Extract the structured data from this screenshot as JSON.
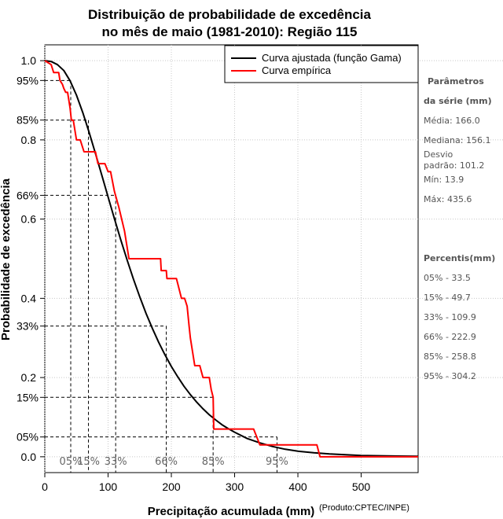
{
  "chart_data": {
    "type": "line",
    "title_line1": "Distribuição de probabilidade de excedência",
    "title_line2": "no mês de maio (1981-2010): Região 115",
    "xlabel": "Precipitação acumulada (mm)",
    "ylabel": "Probabilidade de excedência",
    "credit": "(Produto:CPTEC/INPE)",
    "xlim": [
      0,
      590
    ],
    "ylim": [
      -0.04,
      1.04
    ],
    "x_ticks": [
      0,
      100,
      200,
      300,
      400,
      500
    ],
    "x_tick_labels": [
      "0",
      "100",
      "200",
      "300",
      "400",
      "500"
    ],
    "y_ticks": [
      0.0,
      0.2,
      0.4,
      0.6,
      0.8,
      1.0
    ],
    "y_tick_labels": [
      "0.0",
      "0.2",
      "0.4",
      "0.6",
      "0.8",
      "1.0"
    ],
    "percentile_y_ticks": [
      0.95,
      0.85,
      0.66,
      0.33,
      0.15,
      0.05
    ],
    "percentile_y_labels": [
      "95%",
      "85%",
      "66%",
      "33%",
      "15%",
      "05%"
    ],
    "percentile_markers": [
      {
        "label": "05%",
        "x": 33.5,
        "y": 0.95
      },
      {
        "label": "15%",
        "x": 49.7,
        "y": 0.85
      },
      {
        "label": "33%",
        "x": 109.9,
        "y": 0.66
      },
      {
        "label": "66%",
        "x": 222.9,
        "y": 0.33
      },
      {
        "label": "85%",
        "x": 258.8,
        "y": 0.15
      },
      {
        "label": "95%",
        "x": 304.2,
        "y": 0.05
      }
    ],
    "guide_lines": [
      {
        "x": 41,
        "y": 0.95
      },
      {
        "x": 69,
        "y": 0.85
      },
      {
        "x": 112,
        "y": 0.66
      },
      {
        "x": 192,
        "y": 0.33
      },
      {
        "x": 266,
        "y": 0.15
      },
      {
        "x": 367,
        "y": 0.05
      }
    ],
    "gamma_shape": 2.7,
    "gamma_scale": 61.5,
    "series": [
      {
        "name": "Curva ajustada (função Gama)",
        "color": "#000000",
        "points": [
          [
            0,
            1.0
          ],
          [
            10,
            0.998
          ],
          [
            20,
            0.99
          ],
          [
            30,
            0.975
          ],
          [
            40,
            0.949
          ],
          [
            50,
            0.913
          ],
          [
            60,
            0.869
          ],
          [
            70,
            0.819
          ],
          [
            80,
            0.766
          ],
          [
            90,
            0.711
          ],
          [
            100,
            0.656
          ],
          [
            110,
            0.601
          ],
          [
            120,
            0.548
          ],
          [
            130,
            0.497
          ],
          [
            140,
            0.449
          ],
          [
            150,
            0.404
          ],
          [
            160,
            0.362
          ],
          [
            170,
            0.324
          ],
          [
            180,
            0.289
          ],
          [
            190,
            0.257
          ],
          [
            200,
            0.228
          ],
          [
            210,
            0.202
          ],
          [
            220,
            0.178
          ],
          [
            230,
            0.157
          ],
          [
            240,
            0.138
          ],
          [
            250,
            0.121
          ],
          [
            260,
            0.106
          ],
          [
            270,
            0.093
          ],
          [
            280,
            0.081
          ],
          [
            290,
            0.071
          ],
          [
            300,
            0.062
          ],
          [
            320,
            0.046
          ],
          [
            340,
            0.035
          ],
          [
            360,
            0.026
          ],
          [
            380,
            0.019
          ],
          [
            400,
            0.014
          ],
          [
            425,
            0.01
          ],
          [
            450,
            0.007
          ],
          [
            475,
            0.005
          ],
          [
            500,
            0.003
          ],
          [
            540,
            0.002
          ],
          [
            590,
            0.001
          ]
        ]
      },
      {
        "name": "Curva empírica",
        "color": "#ff0000",
        "points": [
          [
            0,
            1.0
          ],
          [
            10,
            0.99
          ],
          [
            14,
            0.97
          ],
          [
            22,
            0.97
          ],
          [
            24,
            0.95
          ],
          [
            28,
            0.94
          ],
          [
            30,
            0.93
          ],
          [
            33,
            0.92
          ],
          [
            36,
            0.92
          ],
          [
            40,
            0.88
          ],
          [
            42,
            0.85
          ],
          [
            45,
            0.85
          ],
          [
            50,
            0.8
          ],
          [
            56,
            0.8
          ],
          [
            62,
            0.77
          ],
          [
            80,
            0.77
          ],
          [
            84,
            0.74
          ],
          [
            95,
            0.74
          ],
          [
            100,
            0.72
          ],
          [
            104,
            0.72
          ],
          [
            110,
            0.67
          ],
          [
            117,
            0.63
          ],
          [
            126,
            0.57
          ],
          [
            133,
            0.5
          ],
          [
            183,
            0.5
          ],
          [
            184,
            0.47
          ],
          [
            192,
            0.47
          ],
          [
            193,
            0.45
          ],
          [
            208,
            0.45
          ],
          [
            216,
            0.4
          ],
          [
            221,
            0.4
          ],
          [
            225,
            0.38
          ],
          [
            228,
            0.33
          ],
          [
            230,
            0.3
          ],
          [
            237,
            0.23
          ],
          [
            245,
            0.23
          ],
          [
            250,
            0.2
          ],
          [
            260,
            0.2
          ],
          [
            263,
            0.17
          ],
          [
            266,
            0.15
          ],
          [
            267,
            0.07
          ],
          [
            330,
            0.07
          ],
          [
            335,
            0.05
          ],
          [
            340,
            0.03
          ],
          [
            345,
            0.03
          ],
          [
            365,
            0.03
          ],
          [
            430,
            0.03
          ],
          [
            435,
            0.0
          ],
          [
            590,
            0.0
          ]
        ]
      }
    ],
    "legend_position": "top-right"
  },
  "side_panel": {
    "params_title_line1": "Parâmetros",
    "params_title_line2": "da série (mm)",
    "media": "Média: 166.0",
    "mediana": "Mediana: 156.1",
    "desvio_line1": "Desvio",
    "desvio_line2": "padrão: 101.2",
    "min": "Mín: 13.9",
    "max": "Máx: 435.6",
    "percentis_title": "Percentis(mm)",
    "percentis": [
      "05% - 33.5",
      "15% - 49.7",
      "33% - 109.9",
      "66% - 222.9",
      "85% - 258.8",
      "95% - 304.2"
    ]
  }
}
